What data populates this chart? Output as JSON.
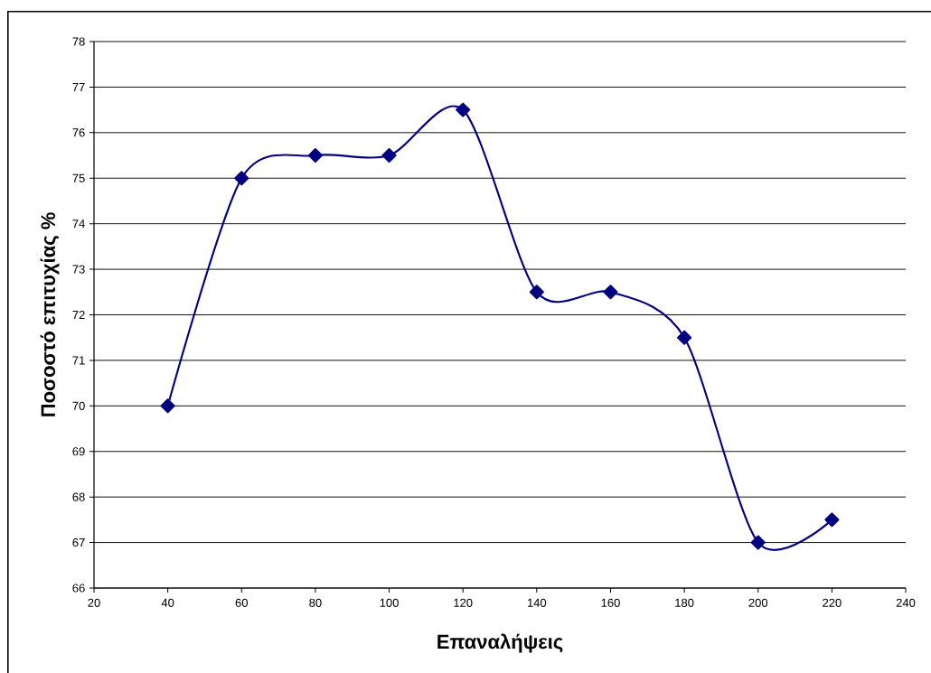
{
  "chart_data": {
    "type": "line",
    "xlabel": "Επαναλήψεις",
    "ylabel": "Ποσοστό επιτυχίας %",
    "x": [
      40,
      60,
      80,
      100,
      120,
      140,
      160,
      180,
      200,
      220
    ],
    "series": [
      {
        "color": "#000080",
        "values": [
          70,
          75,
          75.5,
          75.5,
          76.5,
          72.5,
          72.5,
          71.5,
          67,
          67.5
        ]
      }
    ],
    "xlim": [
      20,
      240
    ],
    "ylim": [
      66,
      78
    ],
    "xticks": [
      20,
      40,
      60,
      80,
      100,
      120,
      140,
      160,
      180,
      200,
      220,
      240
    ],
    "yticks": [
      66,
      67,
      68,
      69,
      70,
      71,
      72,
      73,
      74,
      75,
      76,
      77,
      78
    ],
    "grid": "y",
    "marker": "diamond",
    "line_style": "solid"
  }
}
